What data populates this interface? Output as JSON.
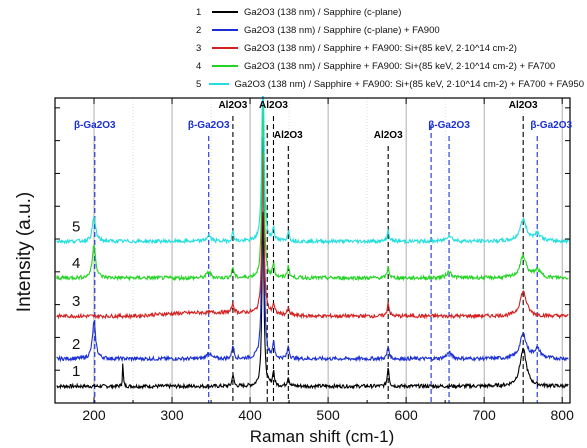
{
  "chart_data": {
    "type": "line",
    "xlabel": "Raman shift (cm-1)",
    "ylabel": "Intensity (a.u.)",
    "xlim": [
      150,
      810
    ],
    "x_ticks": [
      "200",
      "300",
      "400",
      "500",
      "600",
      "700",
      "800"
    ],
    "grid": "vertical dotted",
    "legend_position": "top",
    "y_ticks_labeled": false,
    "series": [
      {
        "name": "Ga2O3 (138 nm) / Sapphire (c-plane)",
        "number": "1",
        "color": "#000000",
        "baseline": 0.055,
        "peaks": [
          {
            "x": 237,
            "h": 0.08,
            "w": 0.6
          },
          {
            "x": 378,
            "h": 0.04,
            "w": 1.2
          },
          {
            "x": 416.5,
            "h": 0.6,
            "w": 1.4
          },
          {
            "x": 430,
            "h": 0.05,
            "w": 1.2
          },
          {
            "x": 449,
            "h": 0.03,
            "w": 1.5
          },
          {
            "x": 577,
            "h": 0.065,
            "w": 1.3
          },
          {
            "x": 750,
            "h": 0.12,
            "w": 5.0
          }
        ]
      },
      {
        "name": "Ga2O3 (138 nm) / Sapphire (c-plane) + FA900",
        "number": "2",
        "color": "#1a2fd4",
        "baseline": 0.145,
        "peaks": [
          {
            "x": 200,
            "h": 0.12,
            "w": 2.5
          },
          {
            "x": 347,
            "h": 0.02,
            "w": 3.0
          },
          {
            "x": 378,
            "h": 0.045,
            "w": 1.5
          },
          {
            "x": 416.5,
            "h": 0.75,
            "w": 1.5
          },
          {
            "x": 430,
            "h": 0.05,
            "w": 1.4
          },
          {
            "x": 449,
            "h": 0.04,
            "w": 1.5
          },
          {
            "x": 577,
            "h": 0.04,
            "w": 1.5
          },
          {
            "x": 655,
            "h": 0.02,
            "w": 4.0
          },
          {
            "x": 750,
            "h": 0.08,
            "w": 5.0
          },
          {
            "x": 768,
            "h": 0.03,
            "w": 5.0
          }
        ]
      },
      {
        "name": "Ga2O3 (138 nm) / Sapphire + FA900: Si+(85 keV, 2·10^14 cm-2)",
        "number": "3",
        "color": "#d42020",
        "baseline": 0.285,
        "peaks": [
          {
            "x": 378,
            "h": 0.03,
            "w": 1.5
          },
          {
            "x": 416.5,
            "h": 0.55,
            "w": 1.5
          },
          {
            "x": 430,
            "h": 0.03,
            "w": 1.4
          },
          {
            "x": 449,
            "h": 0.02,
            "w": 1.5
          },
          {
            "x": 577,
            "h": 0.045,
            "w": 1.4
          },
          {
            "x": 750,
            "h": 0.08,
            "w": 5.0
          }
        ]
      },
      {
        "name": "Ga2O3 (138 nm) / Sapphire + FA900: Si+(85 keV, 2·10^14 cm-2) + FA700",
        "number": "4",
        "color": "#22d422",
        "baseline": 0.41,
        "peaks": [
          {
            "x": 200,
            "h": 0.11,
            "w": 2.5
          },
          {
            "x": 347,
            "h": 0.02,
            "w": 3.0
          },
          {
            "x": 378,
            "h": 0.035,
            "w": 1.5
          },
          {
            "x": 416.5,
            "h": 0.6,
            "w": 1.5
          },
          {
            "x": 430,
            "h": 0.045,
            "w": 1.4
          },
          {
            "x": 449,
            "h": 0.04,
            "w": 1.5
          },
          {
            "x": 577,
            "h": 0.035,
            "w": 1.5
          },
          {
            "x": 655,
            "h": 0.02,
            "w": 4.0
          },
          {
            "x": 750,
            "h": 0.07,
            "w": 5.0
          },
          {
            "x": 768,
            "h": 0.025,
            "w": 5.0
          }
        ]
      },
      {
        "name": "Ga2O3 (138 nm) / Sapphire + FA900: Si+(85 keV, 2·10^14 cm-2) + FA700 + FA950",
        "number": "5",
        "color": "#22dede",
        "baseline": 0.53,
        "peaks": [
          {
            "x": 200,
            "h": 0.08,
            "w": 2.5
          },
          {
            "x": 347,
            "h": 0.02,
            "w": 3.0
          },
          {
            "x": 378,
            "h": 0.03,
            "w": 1.5
          },
          {
            "x": 416.5,
            "h": 0.65,
            "w": 1.5
          },
          {
            "x": 430,
            "h": 0.045,
            "w": 1.4
          },
          {
            "x": 449,
            "h": 0.035,
            "w": 1.5
          },
          {
            "x": 577,
            "h": 0.035,
            "w": 1.5
          },
          {
            "x": 655,
            "h": 0.02,
            "w": 4.0
          },
          {
            "x": 750,
            "h": 0.07,
            "w": 5.0
          },
          {
            "x": 768,
            "h": 0.025,
            "w": 5.0
          }
        ]
      }
    ],
    "reference_lines": [
      {
        "x": 201,
        "color": "#1a2fd4",
        "label": "β-Ga2O3",
        "label_row": "low"
      },
      {
        "x": 347,
        "color": "#1a2fd4",
        "label": "β-Ga2O3",
        "label_row": "low"
      },
      {
        "x": 378,
        "color": "#000000",
        "label": "Al2O3",
        "label_row": "high"
      },
      {
        "x": 422,
        "color": "#000000",
        "label": "",
        "label_row": "none"
      },
      {
        "x": 430,
        "color": "#000000",
        "label": "Al2O3",
        "label_row": "high"
      },
      {
        "x": 449,
        "color": "#000000",
        "label": "Al2O3",
        "label_row": "mid"
      },
      {
        "x": 577,
        "color": "#000000",
        "label": "Al2O3",
        "label_row": "mid"
      },
      {
        "x": 632,
        "color": "#1a2fd4",
        "label": "",
        "label_row": "none"
      },
      {
        "x": 655,
        "color": "#1a2fd4",
        "label": "β-Ga2O3",
        "label_row": "low2"
      },
      {
        "x": 750,
        "color": "#000000",
        "label": "Al2O3",
        "label_row": "high"
      },
      {
        "x": 768,
        "color": "#1a2fd4",
        "label": "β-Ga2O3",
        "label_row": "low2"
      }
    ]
  },
  "legend": [
    {
      "num": "1",
      "text": "Ga2O3 (138 nm) / Sapphire  (c-plane)",
      "color": "#000000"
    },
    {
      "num": "2",
      "text": "Ga2O3 (138 nm) / Sapphire (c-plane) + FA900",
      "color": "#1a2fd4"
    },
    {
      "num": "3",
      "text": "Ga2O3 (138 nm) / Sapphire + FA900: Si+(85 keV, 2·10^14 cm-2)",
      "color": "#d42020"
    },
    {
      "num": "4",
      "text": "Ga2O3 (138 nm) / Sapphire + FA900: Si+(85 keV, 2·10^14 cm-2) + FA700",
      "color": "#22d422"
    },
    {
      "num": "5",
      "text": "Ga2O3 (138 nm) / Sapphire + FA900: Si+(85 keV, 2·10^14 cm-2) + FA700 + FA950",
      "color": "#22dede"
    }
  ]
}
